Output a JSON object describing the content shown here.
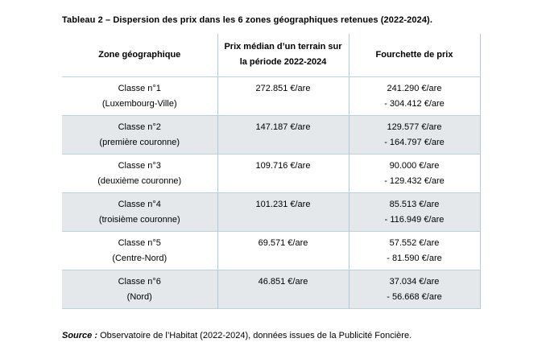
{
  "page": {
    "title": "Tableau 2 – Dispersion des prix dans les 6 zones géographiques retenues (2022-2024)."
  },
  "colors": {
    "border": "#aecbd9",
    "row_shading": "#e4e8eb",
    "text": "#000000",
    "background": "#ffffff"
  },
  "table": {
    "headers": {
      "zone": "Zone géographique",
      "median_line1": "Prix médian d’un terrain sur",
      "median_line2": "la période 2022-2024",
      "range": "Fourchette de prix"
    },
    "rows": [
      {
        "zone_line1": "Classe n°1",
        "zone_line2": "(Luxembourg-Ville)",
        "median": "272.851 €/are",
        "range_line1": "241.290 €/are",
        "range_line2": "- 304.412 €/are",
        "shaded": false
      },
      {
        "zone_line1": "Classe n°2",
        "zone_line2": "(première couronne)",
        "median": "147.187 €/are",
        "range_line1": "129.577 €/are",
        "range_line2": "- 164.797 €/are",
        "shaded": true
      },
      {
        "zone_line1": "Classe n°3",
        "zone_line2": "(deuxième couronne)",
        "median": "109.716 €/are",
        "range_line1": "90.000 €/are",
        "range_line2": "- 129.432 €/are",
        "shaded": false
      },
      {
        "zone_line1": "Classe n°4",
        "zone_line2": "(troisième couronne)",
        "median": "101.231 €/are",
        "range_line1": "85.513 €/are",
        "range_line2": "- 116.949 €/are",
        "shaded": true
      },
      {
        "zone_line1": "Classe n°5",
        "zone_line2": "(Centre-Nord)",
        "median": "69.571 €/are",
        "range_line1": "57.552 €/are",
        "range_line2": "- 81.590 €/are",
        "shaded": false
      },
      {
        "zone_line1": "Classe n°6",
        "zone_line2": "(Nord)",
        "median": "46.851 €/are",
        "range_line1": "37.034 €/are",
        "range_line2": "- 56.668 €/are",
        "shaded": true
      }
    ]
  },
  "source": {
    "label": "Source :",
    "text": " Observatoire de l’Habitat (2022-2024), données issues de la Publicité Foncière."
  }
}
